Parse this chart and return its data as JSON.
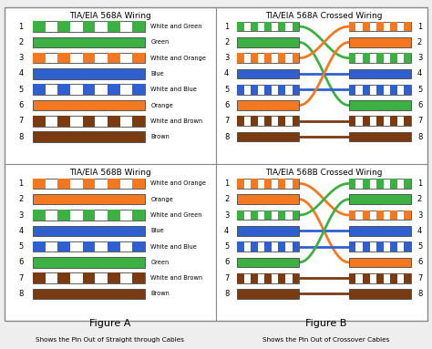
{
  "bg_color": "#eeeeee",
  "border_color": "#888888",
  "sections": {
    "568A": {
      "title": "TIA/EIA 568A Wiring",
      "wires": [
        {
          "pin": 1,
          "label": "White and Green",
          "solid": false,
          "color": "#3cb043"
        },
        {
          "pin": 2,
          "label": "Green",
          "solid": true,
          "color": "#3cb043"
        },
        {
          "pin": 3,
          "label": "White and Orange",
          "solid": false,
          "color": "#f47820"
        },
        {
          "pin": 4,
          "label": "Blue",
          "solid": true,
          "color": "#3060d0"
        },
        {
          "pin": 5,
          "label": "White and Blue",
          "solid": false,
          "color": "#3060d0"
        },
        {
          "pin": 6,
          "label": "Orange",
          "solid": true,
          "color": "#f47820"
        },
        {
          "pin": 7,
          "label": "White and Brown",
          "solid": false,
          "color": "#7a3b10"
        },
        {
          "pin": 8,
          "label": "Brown",
          "solid": true,
          "color": "#7a3b10"
        }
      ]
    },
    "568B": {
      "title": "TIA/EIA 568B Wiring",
      "wires": [
        {
          "pin": 1,
          "label": "White and Orange",
          "solid": false,
          "color": "#f47820"
        },
        {
          "pin": 2,
          "label": "Orange",
          "solid": true,
          "color": "#f47820"
        },
        {
          "pin": 3,
          "label": "White and Green",
          "solid": false,
          "color": "#3cb043"
        },
        {
          "pin": 4,
          "label": "Blue",
          "solid": true,
          "color": "#3060d0"
        },
        {
          "pin": 5,
          "label": "White and Blue",
          "solid": false,
          "color": "#3060d0"
        },
        {
          "pin": 6,
          "label": "Green",
          "solid": true,
          "color": "#3cb043"
        },
        {
          "pin": 7,
          "label": "White and Brown",
          "solid": false,
          "color": "#7a3b10"
        },
        {
          "pin": 8,
          "label": "Brown",
          "solid": true,
          "color": "#7a3b10"
        }
      ]
    },
    "568A_cross": {
      "title": "TIA/EIA 568A Crossed Wiring",
      "left_colors": [
        "#3cb043",
        "#3cb043",
        "#f47820",
        "#3060d0",
        "#3060d0",
        "#f47820",
        "#7a3b10",
        "#7a3b10"
      ],
      "left_solid": [
        false,
        true,
        false,
        true,
        false,
        true,
        false,
        true
      ],
      "right_to_left": [
        3,
        6,
        1,
        4,
        5,
        2,
        7,
        8
      ],
      "right_colors": [
        "#f47820",
        "#f47820",
        "#3cb043",
        "#3060d0",
        "#3060d0",
        "#3cb043",
        "#7a3b10",
        "#7a3b10"
      ],
      "right_solid": [
        false,
        true,
        false,
        true,
        false,
        true,
        false,
        true
      ],
      "line_colors": [
        "#3cb043",
        "#3cb043",
        "#f47820",
        "#3060d0",
        "#3060d0",
        "#f47820",
        "#7a3b10",
        "#7a3b10"
      ]
    },
    "568B_cross": {
      "title": "TIA/EIA 568B Crossed Wiring",
      "left_colors": [
        "#f47820",
        "#f47820",
        "#3cb043",
        "#3060d0",
        "#3060d0",
        "#3cb043",
        "#7a3b10",
        "#7a3b10"
      ],
      "left_solid": [
        false,
        true,
        false,
        true,
        false,
        true,
        false,
        true
      ],
      "right_to_left": [
        3,
        6,
        1,
        4,
        5,
        2,
        7,
        8
      ],
      "right_colors": [
        "#3cb043",
        "#3cb043",
        "#f47820",
        "#3060d0",
        "#3060d0",
        "#f47820",
        "#7a3b10",
        "#7a3b10"
      ],
      "right_solid": [
        false,
        true,
        false,
        true,
        false,
        true,
        false,
        true
      ],
      "line_colors": [
        "#f47820",
        "#f47820",
        "#3cb043",
        "#3060d0",
        "#3060d0",
        "#3cb043",
        "#7a3b10",
        "#7a3b10"
      ]
    }
  },
  "figure_a_label": "Figure A",
  "figure_b_label": "Figure B",
  "caption_a": "Shows the Pin Out of Straight through Cables",
  "caption_b": "Shows the Pin Out of Crossover Cables"
}
